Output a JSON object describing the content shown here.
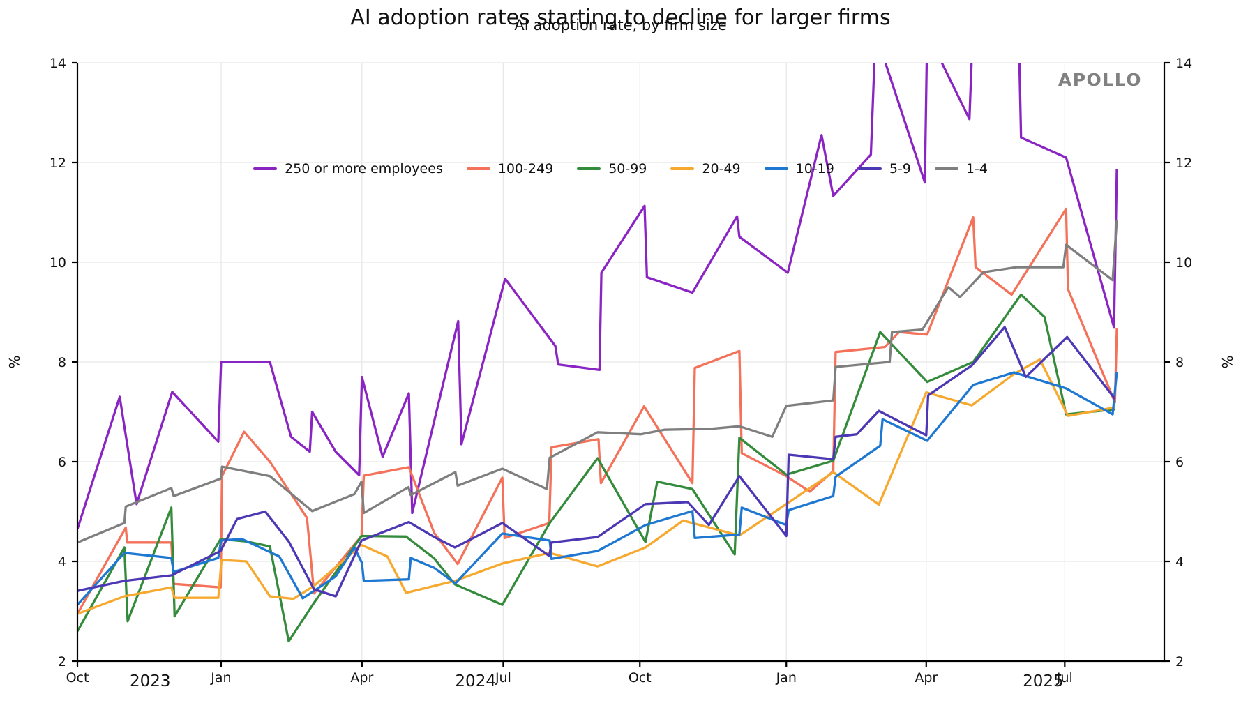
{
  "header": {
    "title": "AI adoption rates starting to decline for larger firms",
    "subtitle": "AI adoption rate, by firm size"
  },
  "watermark": {
    "label": "APOLLO",
    "color": "#808080"
  },
  "chart_data": {
    "type": "line",
    "title": "AI adoption rates starting to decline for larger firms",
    "subtitle": "AI adoption rate, by firm size",
    "ylabel_left": "%",
    "ylabel_right": "%",
    "x_unit": "months since Oct 2023",
    "xlim": [
      0,
      23.15
    ],
    "ylim": [
      2,
      14
    ],
    "grid": true,
    "grid_color": "#e7e7e7",
    "spine_color": "#000000",
    "legend_position": "upper center, no frame",
    "y_ticks": [
      2,
      4,
      6,
      8,
      10,
      12,
      14
    ],
    "x_month_ticks": [
      {
        "m": 0.0,
        "label": "Oct"
      },
      {
        "m": 3.06,
        "label": "Jan"
      },
      {
        "m": 6.06,
        "label": "Apr"
      },
      {
        "m": 9.07,
        "label": "Jul"
      },
      {
        "m": 11.98,
        "label": "Oct"
      },
      {
        "m": 15.1,
        "label": "Jan"
      },
      {
        "m": 18.08,
        "label": "Apr"
      },
      {
        "m": 21.03,
        "label": "Jul"
      }
    ],
    "x_year_labels": [
      {
        "m": 1.55,
        "label": "2023"
      },
      {
        "m": 8.48,
        "label": "2024"
      },
      {
        "m": 20.57,
        "label": "2025"
      }
    ],
    "series": [
      {
        "name": "250 or more employees",
        "color": "#8a24c2",
        "points": [
          [
            0,
            4.65
          ],
          [
            0.9,
            7.3
          ],
          [
            1.26,
            5.15
          ],
          [
            2.02,
            7.4
          ],
          [
            3.0,
            6.4
          ],
          [
            3.06,
            8.0
          ],
          [
            4.1,
            8.0
          ],
          [
            4.55,
            6.5
          ],
          [
            4.95,
            6.2
          ],
          [
            5.0,
            7.0
          ],
          [
            5.5,
            6.2
          ],
          [
            6.0,
            5.73
          ],
          [
            6.06,
            7.7
          ],
          [
            6.5,
            6.1
          ],
          [
            7.06,
            7.37
          ],
          [
            7.13,
            4.97
          ],
          [
            8.11,
            8.82
          ],
          [
            8.18,
            6.35
          ],
          [
            9.11,
            9.67
          ],
          [
            10.18,
            8.32
          ],
          [
            10.24,
            7.95
          ],
          [
            11.12,
            7.84
          ],
          [
            11.16,
            9.79
          ],
          [
            12.08,
            11.13
          ],
          [
            12.13,
            9.7
          ],
          [
            13.1,
            9.39
          ],
          [
            14.05,
            10.92
          ],
          [
            14.1,
            10.51
          ],
          [
            15.13,
            9.79
          ],
          [
            15.85,
            12.55
          ],
          [
            16.1,
            11.33
          ],
          [
            16.9,
            12.16
          ],
          [
            17.0,
            14.6
          ],
          [
            18.05,
            11.6
          ],
          [
            18.1,
            14.6
          ],
          [
            19.0,
            12.87
          ],
          [
            19.07,
            14.6
          ],
          [
            20.05,
            14.6
          ],
          [
            20.1,
            12.5
          ],
          [
            21.06,
            12.1
          ],
          [
            22.08,
            8.69
          ],
          [
            22.14,
            11.86
          ]
        ]
      },
      {
        "name": "100-249",
        "color": "#f4715a",
        "points": [
          [
            0,
            2.95
          ],
          [
            1.03,
            4.68
          ],
          [
            1.06,
            4.38
          ],
          [
            2.0,
            4.38
          ],
          [
            2.05,
            3.55
          ],
          [
            3.05,
            3.48
          ],
          [
            3.08,
            5.71
          ],
          [
            3.55,
            6.6
          ],
          [
            4.1,
            6.0
          ],
          [
            4.89,
            4.87
          ],
          [
            5.04,
            3.36
          ],
          [
            6.05,
            4.51
          ],
          [
            6.1,
            5.72
          ],
          [
            7.06,
            5.89
          ],
          [
            7.6,
            4.57
          ],
          [
            8.1,
            3.95
          ],
          [
            9.05,
            5.68
          ],
          [
            9.1,
            4.47
          ],
          [
            10.05,
            4.77
          ],
          [
            10.1,
            6.29
          ],
          [
            11.1,
            6.45
          ],
          [
            11.15,
            5.57
          ],
          [
            12.07,
            7.11
          ],
          [
            13.1,
            5.57
          ],
          [
            13.15,
            7.88
          ],
          [
            14.1,
            8.22
          ],
          [
            14.15,
            6.17
          ],
          [
            15.1,
            5.71
          ],
          [
            15.6,
            5.4
          ],
          [
            16.1,
            5.81
          ],
          [
            16.15,
            8.2
          ],
          [
            17.2,
            8.3
          ],
          [
            17.5,
            8.6
          ],
          [
            18.1,
            8.55
          ],
          [
            19.08,
            10.9
          ],
          [
            19.13,
            9.9
          ],
          [
            19.9,
            9.35
          ],
          [
            21.06,
            11.07
          ],
          [
            21.1,
            9.46
          ],
          [
            22.1,
            7.19
          ],
          [
            22.14,
            8.67
          ]
        ]
      },
      {
        "name": "50-99",
        "color": "#348b3c",
        "points": [
          [
            0,
            2.6
          ],
          [
            1.0,
            4.28
          ],
          [
            1.07,
            2.8
          ],
          [
            2.0,
            5.08
          ],
          [
            2.07,
            2.9
          ],
          [
            3.05,
            4.45
          ],
          [
            3.6,
            4.4
          ],
          [
            4.1,
            4.3
          ],
          [
            4.5,
            2.4
          ],
          [
            5.04,
            3.17
          ],
          [
            6.05,
            4.51
          ],
          [
            7.0,
            4.5
          ],
          [
            7.6,
            4.06
          ],
          [
            8.04,
            3.54
          ],
          [
            9.05,
            3.13
          ],
          [
            10.06,
            4.77
          ],
          [
            11.08,
            6.07
          ],
          [
            12.1,
            4.39
          ],
          [
            12.35,
            5.6
          ],
          [
            13.1,
            5.45
          ],
          [
            14.0,
            4.14
          ],
          [
            14.1,
            6.48
          ],
          [
            15.1,
            5.74
          ],
          [
            16.1,
            6.02
          ],
          [
            17.1,
            8.6
          ],
          [
            18.1,
            7.6
          ],
          [
            19.08,
            8.0
          ],
          [
            20.1,
            9.35
          ],
          [
            20.6,
            8.9
          ],
          [
            21.06,
            6.95
          ],
          [
            22.1,
            7.05
          ]
        ]
      },
      {
        "name": "20-49",
        "color": "#f7a92f",
        "points": [
          [
            0,
            2.95
          ],
          [
            1.0,
            3.3
          ],
          [
            2.0,
            3.48
          ],
          [
            2.07,
            3.27
          ],
          [
            3.0,
            3.27
          ],
          [
            3.07,
            4.03
          ],
          [
            3.6,
            4.0
          ],
          [
            4.1,
            3.3
          ],
          [
            4.6,
            3.25
          ],
          [
            5.04,
            3.51
          ],
          [
            6.05,
            4.33
          ],
          [
            6.6,
            4.1
          ],
          [
            7.0,
            3.37
          ],
          [
            8.04,
            3.61
          ],
          [
            9.05,
            3.96
          ],
          [
            10.06,
            4.17
          ],
          [
            11.08,
            3.9
          ],
          [
            12.1,
            4.28
          ],
          [
            12.9,
            4.82
          ],
          [
            14.1,
            4.52
          ],
          [
            15.1,
            5.15
          ],
          [
            16.1,
            5.79
          ],
          [
            17.07,
            5.14
          ],
          [
            18.08,
            7.39
          ],
          [
            19.05,
            7.13
          ],
          [
            19.95,
            7.76
          ],
          [
            20.5,
            8.05
          ],
          [
            21.1,
            6.92
          ],
          [
            22.1,
            7.09
          ]
        ]
      },
      {
        "name": "10-19",
        "color": "#1e78d2",
        "points": [
          [
            0,
            3.13
          ],
          [
            1.0,
            4.17
          ],
          [
            2.0,
            4.07
          ],
          [
            2.05,
            3.79
          ],
          [
            3.0,
            4.07
          ],
          [
            3.06,
            4.42
          ],
          [
            3.5,
            4.45
          ],
          [
            4.3,
            4.1
          ],
          [
            4.8,
            3.26
          ],
          [
            5.5,
            3.7
          ],
          [
            5.9,
            4.28
          ],
          [
            6.06,
            3.97
          ],
          [
            6.1,
            3.61
          ],
          [
            7.06,
            3.64
          ],
          [
            7.1,
            4.07
          ],
          [
            7.6,
            3.87
          ],
          [
            8.05,
            3.56
          ],
          [
            9.05,
            4.56
          ],
          [
            10.06,
            4.42
          ],
          [
            10.1,
            4.05
          ],
          [
            11.08,
            4.21
          ],
          [
            12.1,
            4.73
          ],
          [
            13.1,
            5.01
          ],
          [
            13.15,
            4.47
          ],
          [
            14.1,
            4.54
          ],
          [
            14.15,
            5.08
          ],
          [
            15.1,
            4.73
          ],
          [
            15.15,
            5.03
          ],
          [
            16.1,
            5.31
          ],
          [
            16.15,
            5.7
          ],
          [
            17.1,
            6.32
          ],
          [
            17.15,
            6.85
          ],
          [
            18.1,
            6.42
          ],
          [
            19.08,
            7.54
          ],
          [
            19.95,
            7.79
          ],
          [
            21.06,
            7.47
          ],
          [
            22.05,
            6.95
          ],
          [
            22.14,
            7.8
          ]
        ]
      },
      {
        "name": "5-9",
        "color": "#4c38b5",
        "points": [
          [
            0,
            3.41
          ],
          [
            1.0,
            3.61
          ],
          [
            2.0,
            3.72
          ],
          [
            3.05,
            4.21
          ],
          [
            3.4,
            4.85
          ],
          [
            4.0,
            5.0
          ],
          [
            4.5,
            4.4
          ],
          [
            5.04,
            3.44
          ],
          [
            5.5,
            3.3
          ],
          [
            6.05,
            4.42
          ],
          [
            7.06,
            4.79
          ],
          [
            7.6,
            4.49
          ],
          [
            8.04,
            4.28
          ],
          [
            9.05,
            4.77
          ],
          [
            10.05,
            4.11
          ],
          [
            10.1,
            4.38
          ],
          [
            11.08,
            4.49
          ],
          [
            12.1,
            5.15
          ],
          [
            13.0,
            5.19
          ],
          [
            13.45,
            4.73
          ],
          [
            14.1,
            5.71
          ],
          [
            15.1,
            4.51
          ],
          [
            15.15,
            6.14
          ],
          [
            16.1,
            6.05
          ],
          [
            16.15,
            6.5
          ],
          [
            16.6,
            6.55
          ],
          [
            17.07,
            7.02
          ],
          [
            18.08,
            6.53
          ],
          [
            18.12,
            7.33
          ],
          [
            19.05,
            7.93
          ],
          [
            19.75,
            8.7
          ],
          [
            20.2,
            7.7
          ],
          [
            21.08,
            8.5
          ],
          [
            22.1,
            7.26
          ]
        ]
      },
      {
        "name": "1-4",
        "color": "#7f7f7f",
        "points": [
          [
            0,
            4.38
          ],
          [
            1.0,
            4.77
          ],
          [
            1.03,
            5.1
          ],
          [
            2.0,
            5.47
          ],
          [
            2.05,
            5.31
          ],
          [
            3.05,
            5.66
          ],
          [
            3.08,
            5.9
          ],
          [
            4.1,
            5.71
          ],
          [
            5.0,
            5.01
          ],
          [
            5.9,
            5.35
          ],
          [
            6.05,
            5.6
          ],
          [
            6.1,
            4.97
          ],
          [
            7.05,
            5.49
          ],
          [
            7.1,
            5.33
          ],
          [
            8.05,
            5.79
          ],
          [
            8.1,
            5.52
          ],
          [
            9.05,
            5.86
          ],
          [
            10.0,
            5.45
          ],
          [
            10.06,
            6.08
          ],
          [
            11.08,
            6.59
          ],
          [
            12.0,
            6.55
          ],
          [
            12.5,
            6.64
          ],
          [
            13.5,
            6.66
          ],
          [
            14.1,
            6.71
          ],
          [
            14.8,
            6.5
          ],
          [
            15.1,
            7.12
          ],
          [
            16.1,
            7.23
          ],
          [
            16.15,
            7.9
          ],
          [
            17.3,
            8.0
          ],
          [
            17.35,
            8.6
          ],
          [
            18.0,
            8.65
          ],
          [
            18.55,
            9.5
          ],
          [
            18.8,
            9.3
          ],
          [
            19.3,
            9.8
          ],
          [
            20.0,
            9.9
          ],
          [
            21.0,
            9.9
          ],
          [
            21.06,
            10.35
          ],
          [
            22.05,
            9.64
          ],
          [
            22.14,
            10.84
          ]
        ]
      }
    ]
  },
  "layout_text": {
    "note": "all visible text lives above; plot is rendered from chart_data"
  }
}
